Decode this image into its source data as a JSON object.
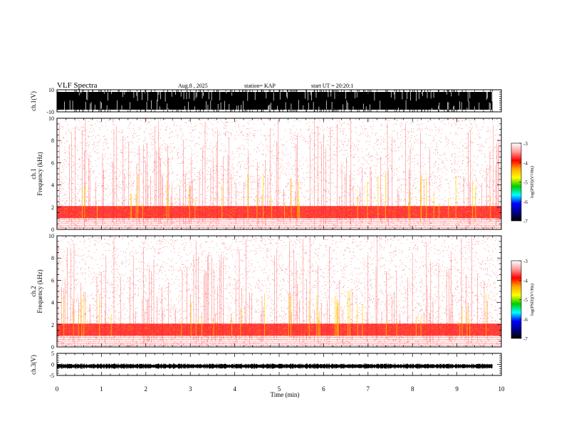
{
  "header": {
    "title": "VLF Spectra",
    "date": "Aug.8 , 2025",
    "station": "station= KAP",
    "start": "start UT = 20:20:1"
  },
  "colorbar": {
    "ticks": [
      "-3",
      "-4",
      "-5",
      "-6",
      "-7"
    ],
    "label": "log(PSD)(V²/Hz)",
    "stops": [
      "#ffffff",
      "#ff9999",
      "#ff0000",
      "#ffaa00",
      "#ffff00",
      "#00cc00",
      "#00ffff",
      "#0000ff",
      "#000088",
      "#000000"
    ]
  },
  "chart_data": [
    {
      "type": "line",
      "name": "ch1-waveform",
      "ylabel": "ch.1(V)",
      "ylim": [
        -10,
        10
      ],
      "yticks": [
        "10",
        "-10"
      ],
      "xlim": [
        0,
        10
      ],
      "description_series": {
        "name": "ch.1 voltage",
        "amplitude_range": [
          -10,
          10
        ]
      }
    },
    {
      "type": "heatmap",
      "name": "ch1-spectrogram",
      "ylabel": "ch.1 Frequency (kHz)",
      "ylim": [
        0,
        10
      ],
      "yticks": [
        "0",
        "2",
        "4",
        "6",
        "8",
        "10"
      ],
      "xlim": [
        0,
        9.8
      ],
      "dense_band_khz": [
        1.0,
        2.1
      ],
      "value_range": [
        -7,
        -3
      ]
    },
    {
      "type": "heatmap",
      "name": "ch2-spectrogram",
      "ylabel": "ch.2 Frequency (kHz)",
      "ylim": [
        0,
        10
      ],
      "yticks": [
        "0",
        "2",
        "4",
        "6",
        "8",
        "10"
      ],
      "xlim": [
        0,
        9.8
      ],
      "dense_band_khz": [
        1.0,
        2.1
      ],
      "value_range": [
        -7,
        -3
      ]
    },
    {
      "type": "line",
      "name": "ch3-waveform",
      "ylabel": "ch.3(V)",
      "ylim": [
        -5,
        5
      ],
      "yticks": [
        "5",
        "0",
        "-5"
      ],
      "xlim": [
        0,
        10
      ],
      "baseline_v": -0.8
    }
  ],
  "xaxis": {
    "label": "Time (min)",
    "ticks": [
      "0",
      "1",
      "2",
      "3",
      "4",
      "5",
      "6",
      "7",
      "8",
      "9",
      "10"
    ]
  }
}
